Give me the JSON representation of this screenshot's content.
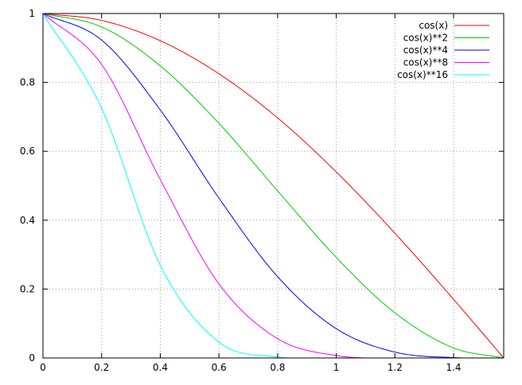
{
  "chart_data": {
    "type": "line",
    "title": "",
    "xlabel": "",
    "ylabel": "",
    "xlim": [
      0,
      1.5708
    ],
    "ylim": [
      0,
      1
    ],
    "xticks": [
      0,
      0.2,
      0.4,
      0.6,
      0.8,
      1,
      1.2,
      1.4
    ],
    "xtick_labels": [
      "0",
      "0.2",
      "0.4",
      "0.6",
      "0.8",
      "1",
      "1.2",
      "1.4"
    ],
    "yticks": [
      0,
      0.2,
      0.4,
      0.6,
      0.8,
      1
    ],
    "ytick_labels": [
      "0",
      "0.2",
      "0.4",
      "0.6",
      "0.8",
      "1"
    ],
    "grid": true,
    "legend_position": "top-right",
    "x": [
      0,
      0.2,
      0.4,
      0.6,
      0.8,
      1.0,
      1.2,
      1.4,
      1.5708
    ],
    "series": [
      {
        "name": "cos(x)",
        "color": "#ff0000",
        "values": [
          1,
          0.98,
          0.921,
          0.825,
          0.697,
          0.54,
          0.362,
          0.17,
          0
        ]
      },
      {
        "name": "cos(x)**2",
        "color": "#00cc00",
        "values": [
          1,
          0.961,
          0.848,
          0.681,
          0.485,
          0.292,
          0.131,
          0.029,
          0
        ]
      },
      {
        "name": "cos(x)**4",
        "color": "#0000ff",
        "values": [
          1,
          0.923,
          0.72,
          0.464,
          0.236,
          0.085,
          0.017,
          0.001,
          0
        ]
      },
      {
        "name": "cos(x)**8",
        "color": "#ff00ff",
        "values": [
          1,
          0.852,
          0.518,
          0.215,
          0.056,
          0.007,
          0,
          0,
          0
        ]
      },
      {
        "name": "cos(x)**16",
        "color": "#00ffff",
        "values": [
          1,
          0.725,
          0.269,
          0.046,
          0.003,
          0,
          0,
          0,
          0
        ]
      }
    ]
  }
}
